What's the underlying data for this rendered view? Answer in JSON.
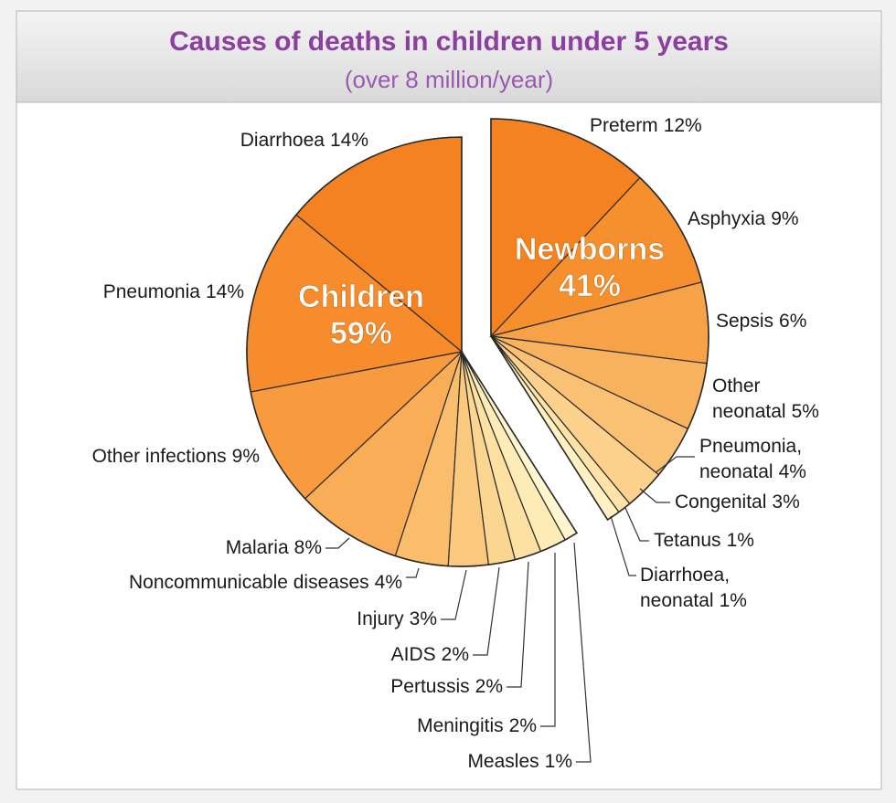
{
  "chart_data": {
    "type": "pie",
    "title": "Causes of deaths in children under 5 years",
    "subtitle": "(over 8 million/year)",
    "groups": [
      {
        "name": "Newborns",
        "value": 41,
        "value_label": "41%",
        "categories": [
          "Preterm",
          "Asphyxia",
          "Sepsis",
          "Other neonatal",
          "Pneumonia, neonatal",
          "Congenital",
          "Tetanus",
          "Diarrhoea, neonatal"
        ],
        "values": [
          12,
          9,
          6,
          5,
          4,
          3,
          1,
          1
        ],
        "value_labels": [
          "12%",
          "9%",
          "6%",
          "5%",
          "4%",
          "3%",
          "1%",
          "1%"
        ],
        "colors": [
          "#f58220",
          "#f6902f",
          "#f7a247",
          "#f8b15c",
          "#f9c173",
          "#fbd18b",
          "#fde3a8",
          "#fff1c2"
        ]
      },
      {
        "name": "Children",
        "value": 59,
        "value_label": "59%",
        "categories": [
          "Diarrhoea",
          "Pneumonia",
          "Other infections",
          "Malaria",
          "Noncommunicable diseases",
          "Injury",
          "AIDS",
          "Pertussis",
          "Meningitis",
          "Measles"
        ],
        "values": [
          14,
          14,
          9,
          8,
          4,
          3,
          2,
          2,
          2,
          1
        ],
        "value_labels": [
          "14%",
          "14%",
          "9%",
          "8%",
          "4%",
          "3%",
          "2%",
          "2%",
          "2%",
          "1%"
        ],
        "colors": [
          "#f58220",
          "#f68c2b",
          "#f79b3e",
          "#f8ad56",
          "#f9bd6c",
          "#fac97e",
          "#fbd690",
          "#fde1a3",
          "#feecb7",
          "#fff6cf"
        ]
      }
    ]
  }
}
